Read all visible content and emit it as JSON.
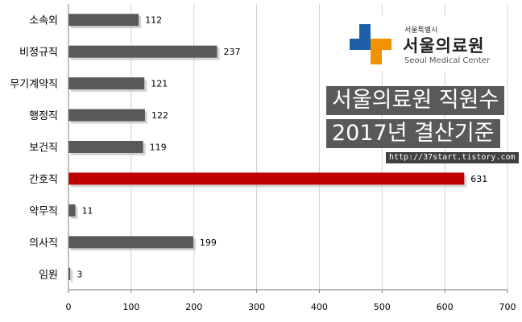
{
  "chart_data": {
    "type": "bar",
    "orientation": "horizontal",
    "categories": [
      "소속외",
      "비정규직",
      "무기계약직",
      "행정직",
      "보건직",
      "간호직",
      "약무직",
      "의사직",
      "임원"
    ],
    "values": [
      112,
      237,
      121,
      122,
      119,
      631,
      11,
      199,
      3
    ],
    "xlim": [
      0,
      700
    ],
    "xticks": [
      0,
      100,
      200,
      300,
      400,
      500,
      600,
      700
    ],
    "grid": "vertical",
    "colors": {
      "bar": "#595959",
      "highlight": "#C00000",
      "grid": "#d0d0d0",
      "axis": "#808080"
    },
    "highlight_category": "간호직"
  },
  "overlay": {
    "logo_small": "서울특별시",
    "logo_name": "서울의료원",
    "logo_english": "Seoul Medical Center",
    "title_line1": "서울의료원 직원수",
    "title_line2": "2017년 결산기준",
    "url": "http://37start.tistory.com",
    "colors": {
      "logo_blue": "#1E5FA8",
      "logo_orange": "#F39200",
      "banner_bg": "#595959",
      "url_bg": "#404040"
    }
  }
}
